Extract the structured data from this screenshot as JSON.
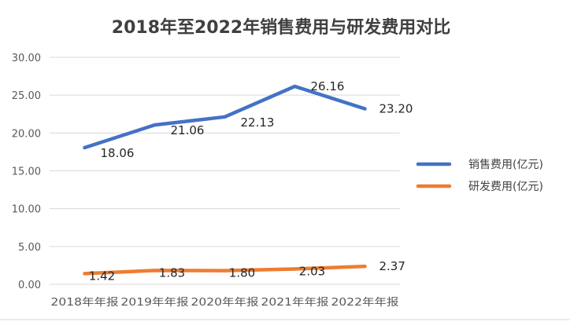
{
  "chart_data": {
    "type": "line",
    "title": "2018年至2022年销售费用与研发费用对比",
    "categories": [
      "2018年年报",
      "2019年年报",
      "2020年年报",
      "2021年年报",
      "2022年年报"
    ],
    "series": [
      {
        "name": "销售费用(亿元)",
        "color": "#4472C4",
        "values": [
          18.06,
          21.06,
          22.13,
          26.16,
          23.2
        ],
        "labels": [
          "18.06",
          "21.06",
          "22.13",
          "26.16",
          "23.20"
        ]
      },
      {
        "name": "研发费用(亿元)",
        "color": "#ED7D31",
        "values": [
          1.42,
          1.83,
          1.8,
          2.03,
          2.37
        ],
        "labels": [
          "1.42",
          "1.83",
          "1.80",
          "2.03",
          "2.37"
        ]
      }
    ],
    "yticks": [
      "0.00",
      "5.00",
      "10.00",
      "15.00",
      "20.00",
      "25.00",
      "30.00"
    ],
    "ylim": [
      0,
      30
    ],
    "xlabel": "",
    "ylabel": "",
    "grid": true,
    "legend": "right"
  }
}
